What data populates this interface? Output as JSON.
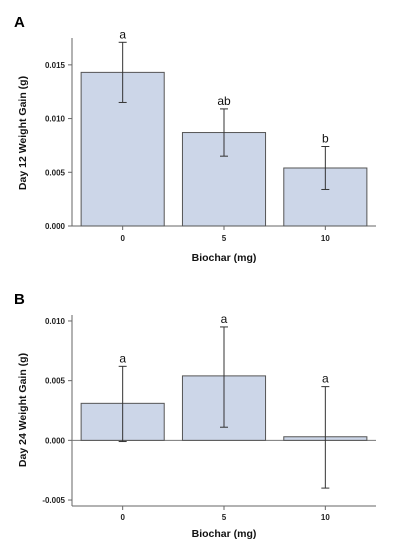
{
  "chart_data": [
    {
      "type": "bar",
      "panel_label": "A",
      "categories": [
        "0",
        "5",
        "10"
      ],
      "values": [
        0.0143,
        0.0087,
        0.0054
      ],
      "error_upper": [
        0.0171,
        0.0109,
        0.0074
      ],
      "error_lower": [
        0.0115,
        0.0065,
        0.0034
      ],
      "significance_letters": [
        "a",
        "ab",
        "b"
      ],
      "xlabel": "Biochar (mg)",
      "ylabel": "Day 12 Weight Gain (g)",
      "ylim": [
        0,
        0.0175
      ],
      "yticks": [
        0.0,
        0.005,
        0.01,
        0.015
      ],
      "ytick_labels": [
        "0.000",
        "0.005",
        "0.010",
        "0.015"
      ],
      "bar_color": "#ccd6e8",
      "edge_color": "#555555",
      "grid": false,
      "legend": false
    },
    {
      "type": "bar",
      "panel_label": "B",
      "categories": [
        "0",
        "5",
        "10"
      ],
      "values": [
        0.0031,
        0.0054,
        0.0003
      ],
      "error_upper": [
        0.0062,
        0.0095,
        0.0045
      ],
      "error_lower": [
        -0.0001,
        0.0011,
        -0.004
      ],
      "significance_letters": [
        "a",
        "a",
        "a"
      ],
      "xlabel": "Biochar (mg)",
      "ylabel": "Day 24 Weight Gain (g)",
      "ylim": [
        -0.0055,
        0.0105
      ],
      "yticks": [
        -0.005,
        0.0,
        0.005,
        0.01
      ],
      "ytick_labels": [
        "-0.005",
        "0.000",
        "0.005",
        "0.010"
      ],
      "bar_color": "#ccd6e8",
      "edge_color": "#555555",
      "grid": false,
      "legend": false
    }
  ]
}
